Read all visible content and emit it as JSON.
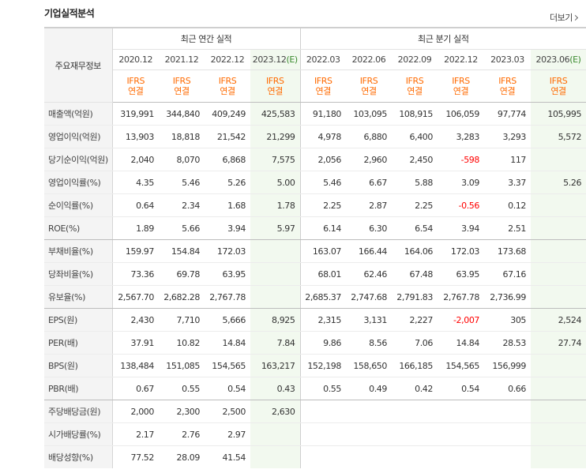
{
  "title": "기업실적분석",
  "more_label": "더보기",
  "header": {
    "side_label": "주요재무정보",
    "annual_label": "최근 연간 실적",
    "quarter_label": "최근 분기 실적",
    "annual_periods": [
      "2020.12",
      "2021.12",
      "2022.12",
      "2023.12(E)"
    ],
    "quarter_periods": [
      "2022.03",
      "2022.06",
      "2022.09",
      "2022.12",
      "2023.03",
      "2023.06(E)"
    ],
    "ifrs_line1": "IFRS",
    "ifrs_line2": "연결"
  },
  "rows": [
    {
      "label": "매출액(억원)",
      "values": [
        "319,991",
        "344,840",
        "409,249",
        "425,583",
        "91,180",
        "103,095",
        "108,915",
        "106,059",
        "97,774",
        "105,995"
      ]
    },
    {
      "label": "영업이익(억원)",
      "values": [
        "13,903",
        "18,818",
        "21,542",
        "21,299",
        "4,978",
        "6,880",
        "6,400",
        "3,283",
        "3,293",
        "5,572"
      ]
    },
    {
      "label": "당기순이익(억원)",
      "values": [
        "2,040",
        "8,070",
        "6,868",
        "7,575",
        "2,056",
        "2,960",
        "2,450",
        "-598",
        "117",
        ""
      ]
    },
    {
      "label": "영업이익률(%)",
      "values": [
        "4.35",
        "5.46",
        "5.26",
        "5.00",
        "5.46",
        "6.67",
        "5.88",
        "3.09",
        "3.37",
        "5.26"
      ]
    },
    {
      "label": "순이익률(%)",
      "values": [
        "0.64",
        "2.34",
        "1.68",
        "1.78",
        "2.25",
        "2.87",
        "2.25",
        "-0.56",
        "0.12",
        ""
      ]
    },
    {
      "label": "ROE(%)",
      "values": [
        "1.89",
        "5.66",
        "3.94",
        "5.97",
        "6.14",
        "6.30",
        "6.54",
        "3.94",
        "2.51",
        ""
      ]
    },
    {
      "label": "부채비율(%)",
      "values": [
        "159.97",
        "154.84",
        "172.03",
        "",
        "163.07",
        "166.44",
        "164.06",
        "172.03",
        "173.68",
        ""
      ]
    },
    {
      "label": "당좌비율(%)",
      "values": [
        "73.36",
        "69.78",
        "63.95",
        "",
        "68.01",
        "62.46",
        "67.48",
        "63.95",
        "67.16",
        ""
      ]
    },
    {
      "label": "유보율(%)",
      "values": [
        "2,567.70",
        "2,682.28",
        "2,767.78",
        "",
        "2,685.37",
        "2,747.68",
        "2,791.83",
        "2,767.78",
        "2,736.99",
        ""
      ]
    },
    {
      "label": "EPS(원)",
      "values": [
        "2,430",
        "7,710",
        "5,666",
        "8,925",
        "2,315",
        "3,131",
        "2,227",
        "-2,007",
        "305",
        "2,524"
      ]
    },
    {
      "label": "PER(배)",
      "values": [
        "37.91",
        "10.82",
        "14.84",
        "7.84",
        "9.86",
        "8.56",
        "7.06",
        "14.84",
        "28.53",
        "27.74"
      ]
    },
    {
      "label": "BPS(원)",
      "values": [
        "138,484",
        "151,085",
        "154,565",
        "163,217",
        "152,198",
        "158,650",
        "166,185",
        "154,565",
        "156,999",
        ""
      ]
    },
    {
      "label": "PBR(배)",
      "values": [
        "0.67",
        "0.55",
        "0.54",
        "0.43",
        "0.55",
        "0.49",
        "0.42",
        "0.54",
        "0.66",
        ""
      ]
    },
    {
      "label": "주당배당금(원)",
      "values": [
        "2,000",
        "2,300",
        "2,500",
        "2,630",
        "",
        "",
        "",
        "",
        "",
        ""
      ]
    },
    {
      "label": "시가배당률(%)",
      "values": [
        "2.17",
        "2.76",
        "2.97",
        "",
        "",
        "",
        "",
        "",
        "",
        ""
      ]
    },
    {
      "label": "배당성향(%)",
      "values": [
        "77.52",
        "28.09",
        "41.54",
        "",
        "",
        "",
        "",
        "",
        "",
        ""
      ]
    }
  ],
  "colors": {
    "negative": "#ff0000",
    "ifrs": "#ff6a00",
    "estimate_bg": "#f2f9ef",
    "estimate_text": "#3a8a2e"
  }
}
